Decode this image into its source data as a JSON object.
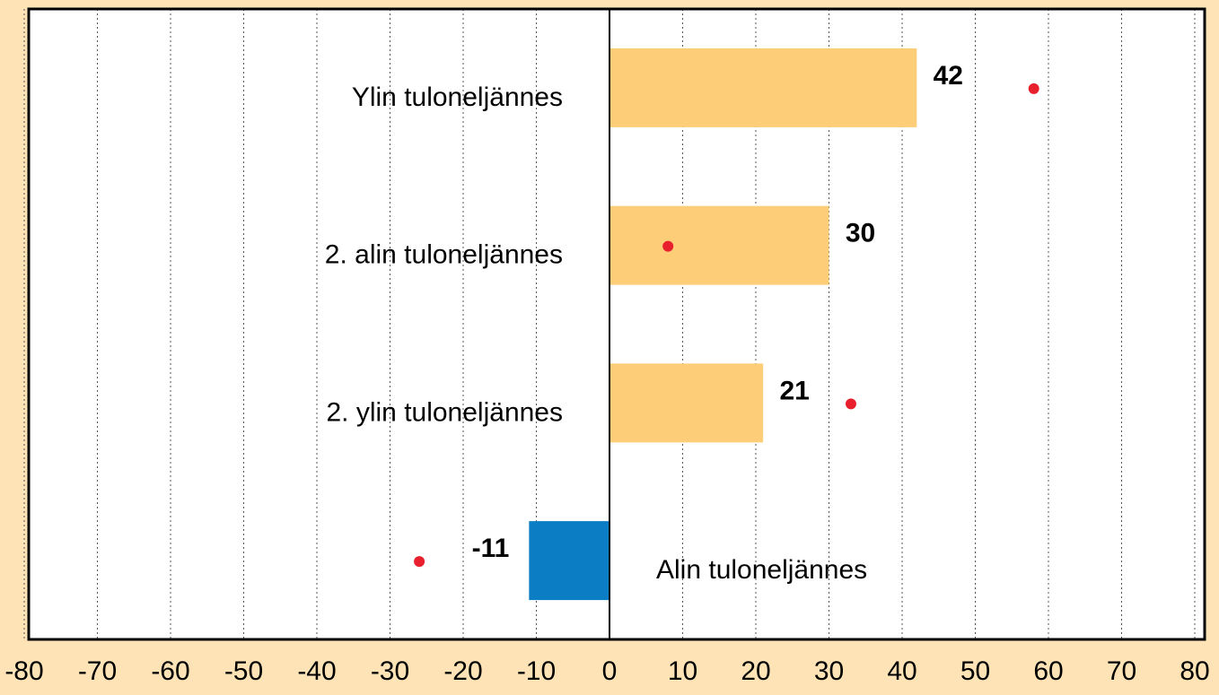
{
  "chart_data": {
    "type": "bar",
    "orientation": "horizontal",
    "categories": [
      "Ylin tuloneljännes",
      "2. alin tuloneljännes",
      "2. ylin tuloneljännes",
      "Alin tuloneljännes"
    ],
    "series": [
      {
        "values": [
          42,
          30,
          21,
          -11
        ],
        "colors": [
          "#fdcd78",
          "#fdcd78",
          "#fdcd78",
          "#0a7dc4"
        ]
      },
      {
        "type": "scatter",
        "color": "#e8202e",
        "values": [
          58,
          8,
          33,
          -26
        ]
      }
    ],
    "xlim": [
      -80,
      80
    ],
    "xticks": [
      -80,
      -70,
      -60,
      -50,
      -40,
      -30,
      -20,
      -10,
      0,
      10,
      20,
      30,
      40,
      50,
      60,
      70,
      80
    ],
    "grid": true
  }
}
